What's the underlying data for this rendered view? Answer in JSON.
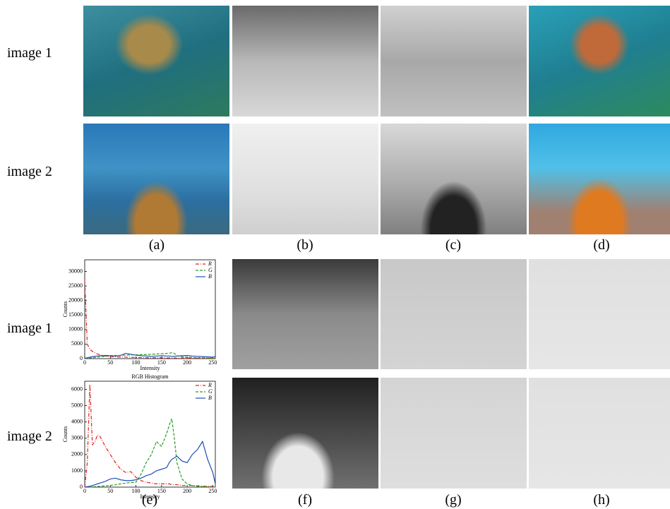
{
  "row_labels": [
    "image 1",
    "image 2",
    "image 1",
    "image 2"
  ],
  "panel_labels": [
    "(a)",
    "(b)",
    "(c)",
    "(d)",
    "(e)",
    "(f)",
    "(g)",
    "(h)"
  ],
  "chart_data": [
    {
      "type": "line",
      "xlabel": "Intensity",
      "ylabel": "Counts",
      "x": [
        0,
        5,
        10,
        15,
        20,
        25,
        30,
        40,
        50,
        60,
        70,
        80,
        90,
        100,
        110,
        120,
        130,
        140,
        150,
        160,
        165,
        170,
        175,
        180,
        190,
        200,
        210,
        220,
        230,
        240,
        250,
        255
      ],
      "xlim": [
        0,
        255
      ],
      "xticks": [
        0,
        50,
        100,
        150,
        200,
        250
      ],
      "ylim": [
        0,
        34000
      ],
      "yticks": [
        0,
        5000,
        10000,
        15000,
        20000,
        25000,
        30000
      ],
      "legend": "upper right",
      "series": [
        {
          "name": "R",
          "color": "#e0201b",
          "style": "dashdot",
          "values": [
            27000,
            5000,
            3200,
            2500,
            2000,
            1600,
            1300,
            900,
            700,
            600,
            550,
            500,
            450,
            400,
            350,
            300,
            300,
            300,
            300,
            250,
            250,
            250,
            250,
            200,
            200,
            200,
            200,
            150,
            150,
            150,
            150,
            100
          ]
        },
        {
          "name": "G",
          "color": "#2a9a2a",
          "style": "dashed",
          "values": [
            0,
            100,
            200,
            300,
            400,
            500,
            600,
            800,
            1000,
            1100,
            1100,
            1200,
            1300,
            1300,
            1400,
            1400,
            1500,
            1600,
            1700,
            1800,
            1900,
            2000,
            1800,
            1000,
            600,
            500,
            400,
            300,
            300,
            200,
            200,
            100
          ]
        },
        {
          "name": "B",
          "color": "#1f4fb4",
          "style": "solid",
          "values": [
            0,
            300,
            500,
            700,
            800,
            900,
            1000,
            1100,
            1000,
            900,
            1100,
            1800,
            1500,
            1200,
            1000,
            900,
            800,
            900,
            1000,
            900,
            900,
            800,
            800,
            900,
            1000,
            1100,
            900,
            800,
            700,
            600,
            500,
            700
          ]
        }
      ]
    },
    {
      "type": "line",
      "title": "RGB Histogram",
      "xlabel": "Intensity",
      "ylabel": "Counts",
      "x": [
        0,
        5,
        10,
        15,
        20,
        25,
        30,
        40,
        50,
        60,
        70,
        80,
        90,
        100,
        110,
        120,
        130,
        140,
        150,
        160,
        165,
        170,
        175,
        180,
        190,
        200,
        210,
        220,
        230,
        240,
        250,
        255
      ],
      "xlim": [
        0,
        255
      ],
      "xticks": [
        0,
        50,
        100,
        150,
        200,
        250
      ],
      "ylim": [
        0,
        6500
      ],
      "yticks": [
        0,
        1000,
        2000,
        3000,
        4000,
        5000,
        6000
      ],
      "legend": "upper right",
      "series": [
        {
          "name": "R",
          "color": "#e0201b",
          "style": "dashdot",
          "values": [
            0,
            1500,
            6300,
            2600,
            2800,
            3200,
            3100,
            2500,
            2000,
            1500,
            1100,
            900,
            950,
            600,
            400,
            300,
            250,
            200,
            200,
            200,
            200,
            150,
            150,
            150,
            100,
            100,
            100,
            80,
            60,
            50,
            40,
            0
          ]
        },
        {
          "name": "G",
          "color": "#2a9a2a",
          "style": "dashed",
          "values": [
            0,
            0,
            0,
            20,
            30,
            40,
            50,
            80,
            100,
            150,
            200,
            250,
            280,
            300,
            800,
            1500,
            2000,
            2800,
            2500,
            3300,
            3800,
            4200,
            3000,
            1500,
            500,
            200,
            100,
            50,
            30,
            20,
            10,
            0
          ]
        },
        {
          "name": "B",
          "color": "#1f4fb4",
          "style": "solid",
          "values": [
            0,
            30,
            50,
            100,
            150,
            200,
            250,
            350,
            500,
            550,
            450,
            400,
            400,
            450,
            550,
            700,
            800,
            1000,
            1100,
            1200,
            1500,
            1700,
            1800,
            1900,
            1600,
            1500,
            2000,
            2300,
            2800,
            1700,
            900,
            200
          ]
        }
      ]
    }
  ]
}
